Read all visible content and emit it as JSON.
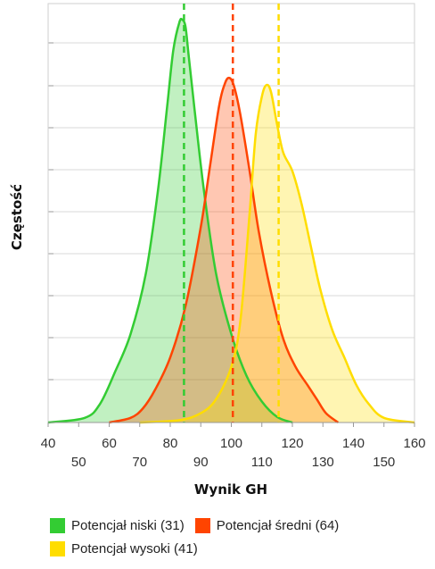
{
  "chart_data": {
    "type": "area",
    "title": "",
    "xlabel": "Wynik GH",
    "ylabel": "Częstość",
    "xlim": [
      40,
      160
    ],
    "x_ticks_upper": [
      40,
      60,
      80,
      100,
      120,
      140,
      160
    ],
    "x_ticks_lower": [
      50,
      70,
      90,
      110,
      130,
      150
    ],
    "y_axis_tick_labels": false,
    "grid": "horizontal",
    "legend_position": "bottom",
    "series": [
      {
        "name": "Potencjał niski (31)",
        "color": "#33cc33",
        "mean": 84.5,
        "points": [
          [
            40,
            0
          ],
          [
            52,
            0.01
          ],
          [
            57,
            0.04
          ],
          [
            62,
            0.11
          ],
          [
            67,
            0.19
          ],
          [
            72,
            0.32
          ],
          [
            76,
            0.5
          ],
          [
            79,
            0.68
          ],
          [
            81,
            0.8
          ],
          [
            83,
            0.86
          ],
          [
            84,
            0.865
          ],
          [
            85,
            0.85
          ],
          [
            86,
            0.79
          ],
          [
            88,
            0.67
          ],
          [
            91,
            0.5
          ],
          [
            95,
            0.32
          ],
          [
            100,
            0.19
          ],
          [
            105,
            0.1
          ],
          [
            110,
            0.045
          ],
          [
            115,
            0.012
          ],
          [
            120,
            0
          ]
        ]
      },
      {
        "name": "Potencjał średni (64)",
        "color": "#ff4400",
        "mean": 100.5,
        "points": [
          [
            60,
            0
          ],
          [
            67,
            0.01
          ],
          [
            71,
            0.03
          ],
          [
            75,
            0.07
          ],
          [
            80,
            0.14
          ],
          [
            85,
            0.25
          ],
          [
            90,
            0.42
          ],
          [
            93,
            0.55
          ],
          [
            96,
            0.68
          ],
          [
            98,
            0.73
          ],
          [
            99.5,
            0.74
          ],
          [
            101,
            0.72
          ],
          [
            103,
            0.66
          ],
          [
            106,
            0.54
          ],
          [
            109,
            0.41
          ],
          [
            113,
            0.28
          ],
          [
            117,
            0.18
          ],
          [
            121,
            0.12
          ],
          [
            125,
            0.08
          ],
          [
            128,
            0.05
          ],
          [
            131,
            0.02
          ],
          [
            135,
            0
          ]
        ]
      },
      {
        "name": "Potencjał wysoki (41)",
        "color": "#ffdd00",
        "mean": 115.5,
        "points": [
          [
            70,
            0
          ],
          [
            83,
            0.005
          ],
          [
            90,
            0.02
          ],
          [
            95,
            0.05
          ],
          [
            100,
            0.12
          ],
          [
            103,
            0.22
          ],
          [
            106,
            0.45
          ],
          [
            108,
            0.62
          ],
          [
            110,
            0.7
          ],
          [
            111.5,
            0.725
          ],
          [
            113,
            0.71
          ],
          [
            115,
            0.64
          ],
          [
            117,
            0.58
          ],
          [
            120,
            0.54
          ],
          [
            123,
            0.47
          ],
          [
            126,
            0.38
          ],
          [
            129,
            0.29
          ],
          [
            133,
            0.2
          ],
          [
            137,
            0.14
          ],
          [
            141,
            0.08
          ],
          [
            145,
            0.04
          ],
          [
            150,
            0.01
          ],
          [
            160,
            0
          ]
        ]
      }
    ]
  },
  "legend": {
    "rows": [
      [
        {
          "label": "Potencjał niski (31)",
          "color": "#33cc33"
        },
        {
          "label": "Potencjał średni (64)",
          "color": "#ff4400"
        }
      ],
      [
        {
          "label": "Potencjał wysoki (41)",
          "color": "#ffdd00"
        }
      ]
    ]
  }
}
